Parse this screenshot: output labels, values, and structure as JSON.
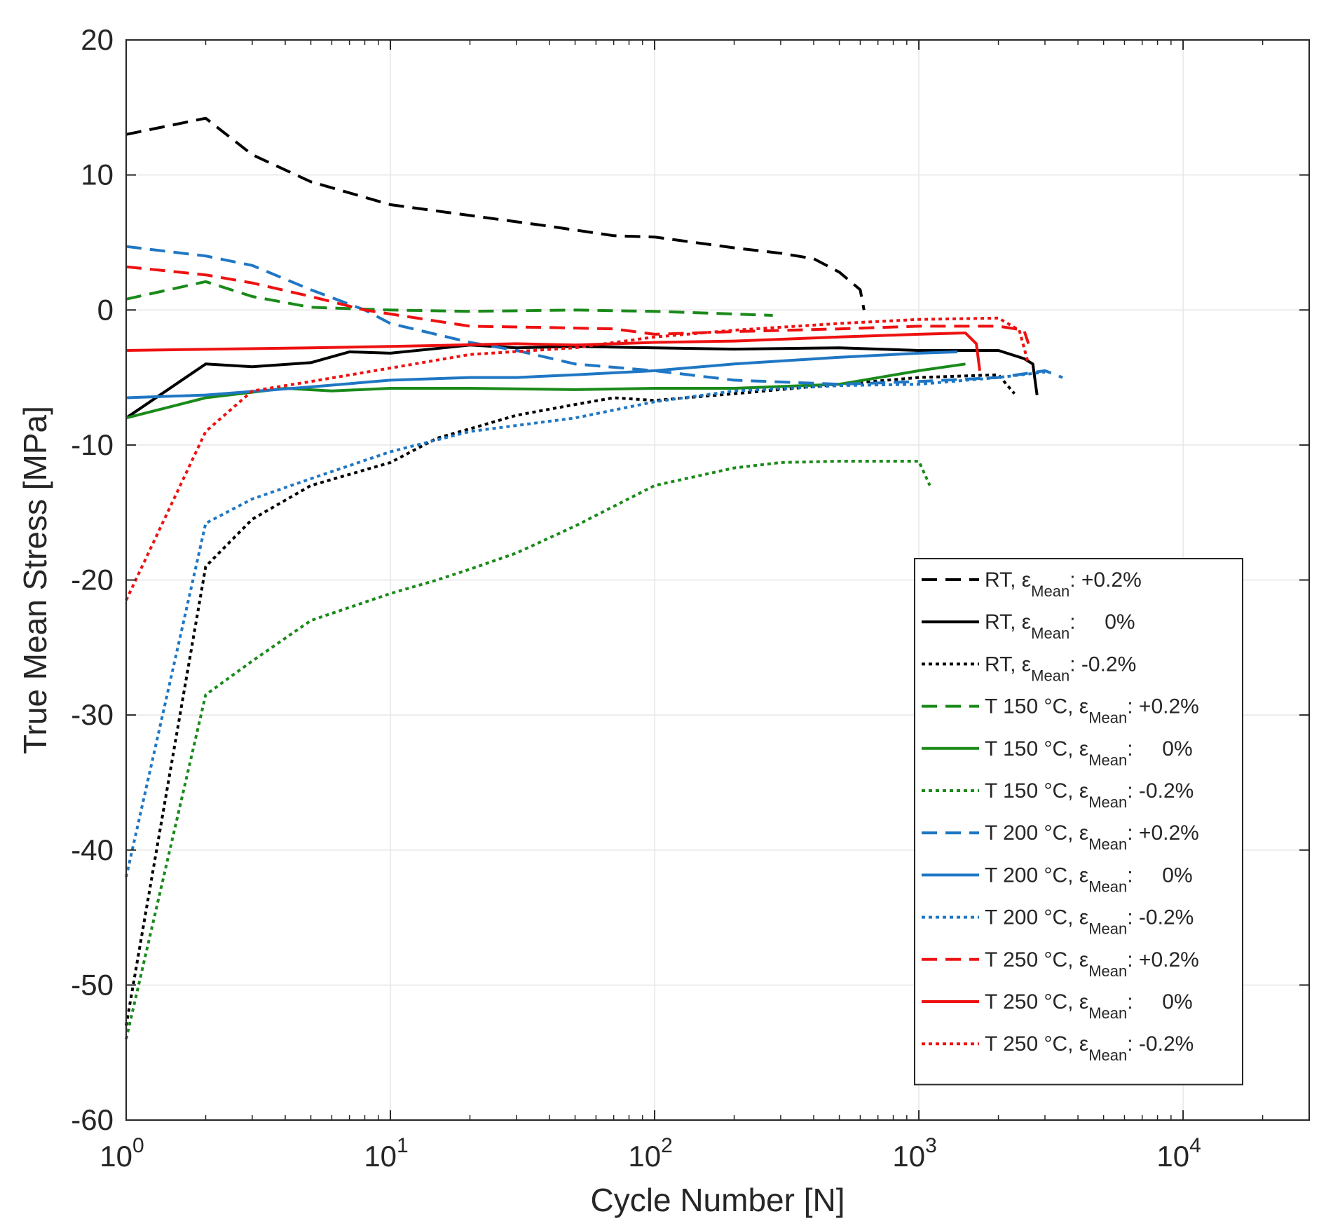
{
  "chart_data": {
    "type": "line",
    "title": "",
    "xlabel": "Cycle Number [N]",
    "ylabel": "True Mean Stress [MPa]",
    "xscale": "log",
    "xlim": [
      1,
      30000
    ],
    "ylim": [
      -60,
      20
    ],
    "grid": true,
    "legend_position": "lower-right",
    "x_ticks": [
      {
        "value": 1,
        "base": "10",
        "exp": "0"
      },
      {
        "value": 10,
        "base": "10",
        "exp": "1"
      },
      {
        "value": 100,
        "base": "10",
        "exp": "2"
      },
      {
        "value": 1000,
        "base": "10",
        "exp": "3"
      },
      {
        "value": 10000,
        "base": "10",
        "exp": "4"
      }
    ],
    "y_ticks": [
      {
        "value": 20,
        "label": "20"
      },
      {
        "value": 10,
        "label": "10"
      },
      {
        "value": 0,
        "label": "0"
      },
      {
        "value": -10,
        "label": "-10"
      },
      {
        "value": -20,
        "label": "-20"
      },
      {
        "value": -30,
        "label": "-30"
      },
      {
        "value": -40,
        "label": "-40"
      },
      {
        "value": -50,
        "label": "-50"
      },
      {
        "value": -60,
        "label": "-60"
      }
    ],
    "series": [
      {
        "name": "RT, εMean: +0.2%",
        "legend": {
          "prefix": "RT, ε",
          "sub": "Mean",
          "suffix": ": +0.2%"
        },
        "color": "#000000",
        "style": "dashed",
        "points": [
          [
            1,
            13
          ],
          [
            2,
            14.2
          ],
          [
            3,
            11.5
          ],
          [
            5,
            9.5
          ],
          [
            10,
            7.8
          ],
          [
            20,
            7
          ],
          [
            40,
            6.2
          ],
          [
            70,
            5.5
          ],
          [
            100,
            5.4
          ],
          [
            200,
            4.6
          ],
          [
            300,
            4.2
          ],
          [
            400,
            3.8
          ],
          [
            500,
            2.8
          ],
          [
            600,
            1.5
          ],
          [
            620,
            0
          ]
        ]
      },
      {
        "name": "RT, εMean: 0%",
        "legend": {
          "prefix": "RT, ε",
          "sub": "Mean",
          "suffix": ":     0%"
        },
        "color": "#000000",
        "style": "solid",
        "points": [
          [
            1,
            -8
          ],
          [
            2,
            -4
          ],
          [
            3,
            -4.2
          ],
          [
            5,
            -3.9
          ],
          [
            7,
            -3.1
          ],
          [
            10,
            -3.2
          ],
          [
            20,
            -2.6
          ],
          [
            30,
            -2.8
          ],
          [
            50,
            -2.7
          ],
          [
            100,
            -2.8
          ],
          [
            200,
            -2.9
          ],
          [
            500,
            -2.8
          ],
          [
            1000,
            -3
          ],
          [
            2000,
            -3
          ],
          [
            2500,
            -3.6
          ],
          [
            2700,
            -4
          ],
          [
            2800,
            -6.3
          ]
        ]
      },
      {
        "name": "RT, εMean: -0.2%",
        "legend": {
          "prefix": "RT, ε",
          "sub": "Mean",
          "suffix": ": -0.2%"
        },
        "color": "#000000",
        "style": "dotted",
        "points": [
          [
            1,
            -53
          ],
          [
            2,
            -19
          ],
          [
            3,
            -15.5
          ],
          [
            5,
            -13
          ],
          [
            10,
            -11.3
          ],
          [
            15,
            -9.5
          ],
          [
            20,
            -8.8
          ],
          [
            30,
            -7.8
          ],
          [
            50,
            -7
          ],
          [
            70,
            -6.5
          ],
          [
            100,
            -6.7
          ],
          [
            200,
            -6.2
          ],
          [
            500,
            -5.5
          ],
          [
            1000,
            -5
          ],
          [
            2000,
            -4.8
          ],
          [
            2300,
            -6.2
          ]
        ]
      },
      {
        "name": "T 150 °C, εMean: +0.2%",
        "legend": {
          "prefix": "T 150 °C, ε",
          "sub": "Mean",
          "suffix": ": +0.2%"
        },
        "color": "#1a8a1a",
        "style": "dashed",
        "points": [
          [
            1,
            0.8
          ],
          [
            2,
            2.1
          ],
          [
            3,
            1
          ],
          [
            5,
            0.2
          ],
          [
            10,
            0
          ],
          [
            20,
            -0.1
          ],
          [
            50,
            0
          ],
          [
            100,
            -0.1
          ],
          [
            200,
            -0.3
          ],
          [
            280,
            -0.4
          ]
        ]
      },
      {
        "name": "T 150 °C, εMean: 0%",
        "legend": {
          "prefix": "T 150 °C, ε",
          "sub": "Mean",
          "suffix": ":     0%"
        },
        "color": "#1a8a1a",
        "style": "solid",
        "points": [
          [
            1,
            -8
          ],
          [
            2,
            -6.5
          ],
          [
            4,
            -5.8
          ],
          [
            6,
            -6
          ],
          [
            10,
            -5.8
          ],
          [
            20,
            -5.8
          ],
          [
            50,
            -5.9
          ],
          [
            100,
            -5.8
          ],
          [
            200,
            -5.8
          ],
          [
            500,
            -5.5
          ],
          [
            1000,
            -4.5
          ],
          [
            1500,
            -4
          ]
        ]
      },
      {
        "name": "T 150 °C, εMean: -0.2%",
        "legend": {
          "prefix": "T 150 °C, ε",
          "sub": "Mean",
          "suffix": ": -0.2%"
        },
        "color": "#1a8a1a",
        "style": "dotted",
        "points": [
          [
            1,
            -54
          ],
          [
            2,
            -28.5
          ],
          [
            3,
            -26
          ],
          [
            5,
            -23
          ],
          [
            10,
            -21
          ],
          [
            15,
            -20
          ],
          [
            20,
            -19.2
          ],
          [
            30,
            -18
          ],
          [
            50,
            -16
          ],
          [
            100,
            -13
          ],
          [
            200,
            -11.7
          ],
          [
            300,
            -11.3
          ],
          [
            500,
            -11.2
          ],
          [
            1000,
            -11.2
          ],
          [
            1100,
            -13
          ]
        ]
      },
      {
        "name": "T 200 °C, εMean: +0.2%",
        "legend": {
          "prefix": "T 200 °C, ε",
          "sub": "Mean",
          "suffix": ": +0.2%"
        },
        "color": "#1f77c4",
        "style": "dashed",
        "points": [
          [
            1,
            4.7
          ],
          [
            2,
            4
          ],
          [
            3,
            3.3
          ],
          [
            5,
            1.5
          ],
          [
            8,
            0
          ],
          [
            10,
            -1
          ],
          [
            20,
            -2.4
          ],
          [
            30,
            -3
          ],
          [
            50,
            -4
          ],
          [
            100,
            -4.5
          ],
          [
            200,
            -5.2
          ],
          [
            500,
            -5.5
          ],
          [
            1000,
            -5.3
          ],
          [
            2000,
            -5
          ],
          [
            3000,
            -4.5
          ],
          [
            3500,
            -5
          ]
        ]
      },
      {
        "name": "T 200 °C, εMean: 0%",
        "legend": {
          "prefix": "T 200 °C, ε",
          "sub": "Mean",
          "suffix": ":     0%"
        },
        "color": "#1f77c4",
        "style": "solid",
        "points": [
          [
            1,
            -6.5
          ],
          [
            2,
            -6.3
          ],
          [
            5,
            -5.7
          ],
          [
            10,
            -5.2
          ],
          [
            20,
            -5
          ],
          [
            30,
            -5
          ],
          [
            50,
            -4.8
          ],
          [
            100,
            -4.5
          ],
          [
            200,
            -4
          ],
          [
            500,
            -3.5
          ],
          [
            1000,
            -3.2
          ],
          [
            1400,
            -3.1
          ]
        ]
      },
      {
        "name": "T 200 °C, εMean: -0.2%",
        "legend": {
          "prefix": "T 200 °C, ε",
          "sub": "Mean",
          "suffix": ": -0.2%"
        },
        "color": "#1f77c4",
        "style": "dotted",
        "points": [
          [
            1,
            -42
          ],
          [
            2,
            -15.8
          ],
          [
            3,
            -14
          ],
          [
            5,
            -12.5
          ],
          [
            10,
            -10.5
          ],
          [
            20,
            -9
          ],
          [
            50,
            -8
          ],
          [
            100,
            -6.8
          ],
          [
            200,
            -6
          ],
          [
            500,
            -5.6
          ],
          [
            1000,
            -5.5
          ],
          [
            2000,
            -5
          ],
          [
            3000,
            -4.6
          ]
        ]
      },
      {
        "name": "T 250 °C, εMean: +0.2%",
        "legend": {
          "prefix": "T 250 °C, ε",
          "sub": "Mean",
          "suffix": ": +0.2%"
        },
        "color": "#ee1111",
        "style": "dashed",
        "points": [
          [
            1,
            3.2
          ],
          [
            2,
            2.6
          ],
          [
            3,
            2
          ],
          [
            5,
            1
          ],
          [
            8,
            0
          ],
          [
            10,
            -0.3
          ],
          [
            20,
            -1.2
          ],
          [
            40,
            -1.3
          ],
          [
            70,
            -1.4
          ],
          [
            100,
            -1.8
          ],
          [
            200,
            -1.6
          ],
          [
            500,
            -1.4
          ],
          [
            1000,
            -1.2
          ],
          [
            2000,
            -1.2
          ],
          [
            2500,
            -1.5
          ],
          [
            2600,
            -2.5
          ]
        ]
      },
      {
        "name": "T 250 °C, εMean: 0%",
        "legend": {
          "prefix": "T 250 °C, ε",
          "sub": "Mean",
          "suffix": ":     0%"
        },
        "color": "#ee1111",
        "style": "solid",
        "points": [
          [
            1,
            -3
          ],
          [
            5,
            -2.8
          ],
          [
            10,
            -2.7
          ],
          [
            30,
            -2.5
          ],
          [
            50,
            -2.6
          ],
          [
            100,
            -2.4
          ],
          [
            200,
            -2.3
          ],
          [
            500,
            -2
          ],
          [
            1000,
            -1.8
          ],
          [
            1500,
            -1.7
          ],
          [
            1650,
            -2.5
          ],
          [
            1700,
            -4.5
          ]
        ]
      },
      {
        "name": "T 250 °C, εMean: -0.2%",
        "legend": {
          "prefix": "T 250 °C, ε",
          "sub": "Mean",
          "suffix": ": -0.2%"
        },
        "color": "#ee1111",
        "style": "dotted",
        "points": [
          [
            1,
            -21.5
          ],
          [
            2,
            -9
          ],
          [
            3,
            -6
          ],
          [
            5,
            -5.3
          ],
          [
            10,
            -4.3
          ],
          [
            20,
            -3.3
          ],
          [
            50,
            -2.8
          ],
          [
            100,
            -2
          ],
          [
            200,
            -1.5
          ],
          [
            500,
            -1
          ],
          [
            1000,
            -0.7
          ],
          [
            2000,
            -0.6
          ],
          [
            2400,
            -1.5
          ],
          [
            2600,
            -4
          ]
        ]
      }
    ]
  }
}
